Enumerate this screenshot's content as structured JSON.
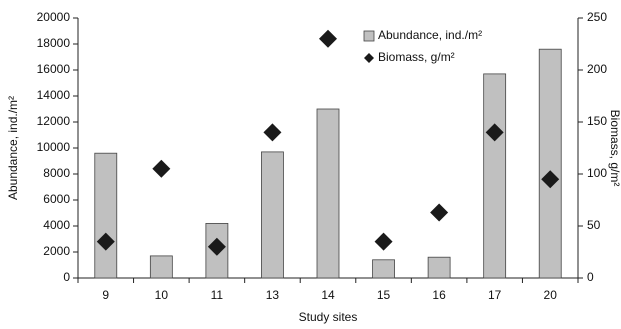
{
  "chart_data": {
    "type": "bar",
    "xlabel": "Study sites",
    "ylabel": "Abundance, ind./m²",
    "y2label": "Biomass, g/m²",
    "categories": [
      "9",
      "10",
      "11",
      "13",
      "14",
      "15",
      "16",
      "17",
      "20"
    ],
    "series": [
      {
        "name": "Abundance, ind./m²",
        "color": "#c0c0c0",
        "type": "bar",
        "values": [
          9600,
          1700,
          4200,
          9700,
          13000,
          1400,
          1600,
          15700,
          17600
        ]
      },
      {
        "name": "Biomass, g/m²",
        "color": "#1a1a1a",
        "type": "scatter",
        "axis": "y2",
        "values": [
          35,
          105,
          30,
          140,
          230,
          35,
          63,
          140,
          95
        ]
      }
    ],
    "ylim": [
      0,
      20000
    ],
    "yticks": [
      0,
      2000,
      4000,
      6000,
      8000,
      10000,
      12000,
      14000,
      16000,
      18000,
      20000
    ],
    "y2lim": [
      0,
      250
    ],
    "y2ticks": [
      0,
      50,
      100,
      150,
      200,
      250
    ]
  }
}
